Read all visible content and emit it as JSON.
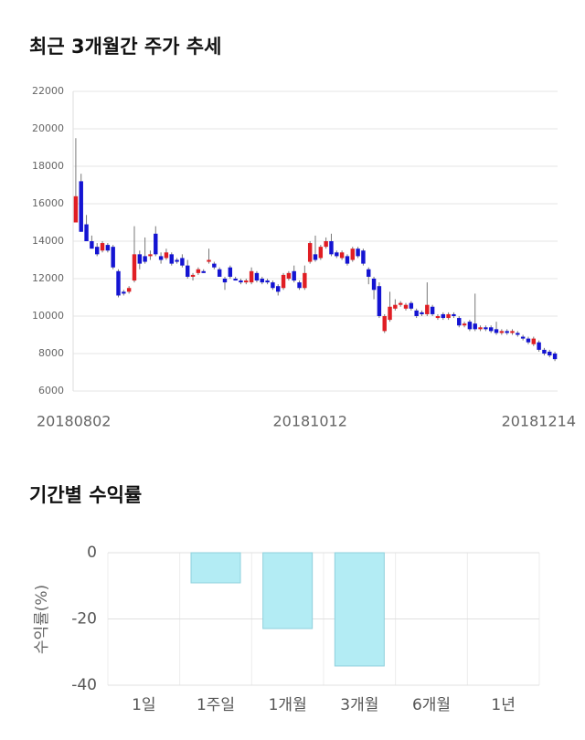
{
  "chart_data": [
    {
      "type": "candlestick",
      "title": "최근 3개월간 주가 추세",
      "categories": [
        "20180802",
        null,
        null,
        null,
        null,
        null,
        null,
        null,
        null,
        null,
        null,
        null,
        null,
        null,
        null,
        null,
        null,
        null,
        null,
        null,
        null,
        null,
        null,
        null,
        null,
        null,
        null,
        null,
        null,
        null,
        null,
        null,
        null,
        null,
        null,
        null,
        null,
        null,
        null,
        null,
        null,
        null,
        null,
        null,
        "20181012",
        null,
        null,
        null,
        null,
        null,
        null,
        null,
        null,
        null,
        null,
        null,
        null,
        null,
        null,
        null,
        null,
        null,
        null,
        null,
        null,
        null,
        null,
        null,
        null,
        null,
        null,
        null,
        null,
        null,
        null,
        null,
        null,
        null,
        null,
        null,
        null,
        null,
        null,
        null,
        null,
        null,
        null,
        null,
        null,
        null,
        "20181214"
      ],
      "open": [
        15000,
        17200,
        14900,
        14000,
        13700,
        13500,
        13800,
        13700,
        12400,
        11300,
        11300,
        11900,
        13300,
        13200,
        13200,
        14400,
        13200,
        13100,
        13300,
        13000,
        13100,
        12700,
        12100,
        12300,
        12400,
        12900,
        12800,
        12500,
        12000,
        12600,
        12000,
        11900,
        11800,
        11800,
        12300,
        12000,
        11900,
        11800,
        11600,
        11500,
        12000,
        12400,
        11800,
        11500,
        12900,
        13300,
        13100,
        13700,
        14000,
        13400,
        13100,
        13200,
        13000,
        13600,
        13500,
        12500,
        12000,
        11600,
        9200,
        9800,
        10400,
        10600,
        10400,
        10700,
        10300,
        10200,
        10100,
        10500,
        9900,
        10100,
        9900,
        10100,
        9900,
        9500,
        9700,
        9600,
        9300,
        9400,
        9400,
        9300,
        9100,
        9200,
        9100,
        9100,
        8900,
        8800,
        8500,
        8600,
        8200,
        8100,
        8000
      ],
      "high": [
        19500,
        17600,
        15400,
        14300,
        13900,
        14000,
        13900,
        13800,
        12500,
        11400,
        11600,
        14800,
        13500,
        14200,
        13500,
        14800,
        13400,
        13600,
        13400,
        13100,
        13300,
        13000,
        12300,
        12600,
        12500,
        13600,
        12900,
        12600,
        12100,
        12700,
        12100,
        12000,
        12000,
        12600,
        12400,
        12100,
        12000,
        11900,
        11700,
        12300,
        12400,
        12700,
        11900,
        12700,
        14000,
        14300,
        13800,
        14200,
        14400,
        13500,
        13500,
        13300,
        13700,
        13700,
        13600,
        12600,
        12100,
        11800,
        10100,
        11300,
        10900,
        10800,
        10700,
        10800,
        10400,
        10300,
        11800,
        10600,
        10100,
        10200,
        10200,
        10200,
        10000,
        9700,
        9800,
        11200,
        9500,
        9500,
        9500,
        9700,
        9300,
        9300,
        9300,
        9200,
        9000,
        8900,
        8900,
        8700,
        8300,
        8200,
        8100
      ],
      "low": [
        15000,
        14500,
        14000,
        13600,
        13200,
        13400,
        13400,
        12500,
        11000,
        11100,
        11200,
        11800,
        12500,
        12800,
        13000,
        13200,
        12800,
        13000,
        12700,
        12800,
        12600,
        12000,
        11900,
        12200,
        12300,
        12800,
        12500,
        12100,
        11400,
        12000,
        11900,
        11700,
        11700,
        11700,
        11800,
        11700,
        11700,
        11400,
        11100,
        11400,
        11900,
        11800,
        11400,
        11400,
        12800,
        12900,
        13000,
        13600,
        13200,
        13100,
        13000,
        12700,
        12900,
        13100,
        12700,
        11700,
        10900,
        9900,
        9100,
        9700,
        10300,
        10500,
        10300,
        10300,
        9900,
        10000,
        10000,
        10000,
        9800,
        9800,
        9800,
        9900,
        9400,
        9400,
        9200,
        9200,
        9200,
        9200,
        9100,
        9000,
        9000,
        9000,
        9000,
        8900,
        8700,
        8500,
        8400,
        8100,
        7900,
        7800,
        7600
      ],
      "close": [
        16400,
        14500,
        14000,
        13600,
        13300,
        13900,
        13500,
        12600,
        11100,
        11200,
        11500,
        13300,
        12800,
        12900,
        13300,
        13300,
        13000,
        13400,
        12800,
        12900,
        12700,
        12100,
        12200,
        12500,
        12300,
        13000,
        12600,
        12100,
        11800,
        12100,
        11900,
        11800,
        11900,
        12400,
        11900,
        11800,
        11800,
        11500,
        11300,
        12200,
        12300,
        11900,
        11500,
        12300,
        13900,
        13000,
        13700,
        14000,
        13300,
        13200,
        13400,
        12800,
        13600,
        13200,
        12800,
        12100,
        11400,
        10000,
        10000,
        10500,
        10600,
        10700,
        10600,
        10400,
        10000,
        10100,
        10600,
        10100,
        10000,
        9900,
        10100,
        10000,
        9500,
        9600,
        9300,
        9300,
        9400,
        9300,
        9200,
        9100,
        9200,
        9100,
        9200,
        9000,
        8800,
        8600,
        8800,
        8200,
        8000,
        7900,
        7700
      ],
      "up_color": "#e01e24",
      "down_color": "#1414d2",
      "ylim": [
        6000,
        22000
      ],
      "yticks": [
        6000,
        8000,
        10000,
        12000,
        14000,
        16000,
        18000,
        20000,
        22000
      ],
      "grid": true
    },
    {
      "type": "bar",
      "title": "기간별 수익률",
      "y_label": "수익률(%)",
      "categories": [
        "1일",
        "1주일",
        "1개월",
        "3개월",
        "6개월",
        "1년"
      ],
      "values": [
        null,
        -9.1,
        -22.9,
        -34.2,
        null,
        null
      ],
      "color": "#b3ecf4",
      "edge_color": "#8fd0dc",
      "ylim": [
        -40,
        0
      ],
      "yticks": [
        0,
        -20,
        -40
      ],
      "grid": true
    }
  ]
}
